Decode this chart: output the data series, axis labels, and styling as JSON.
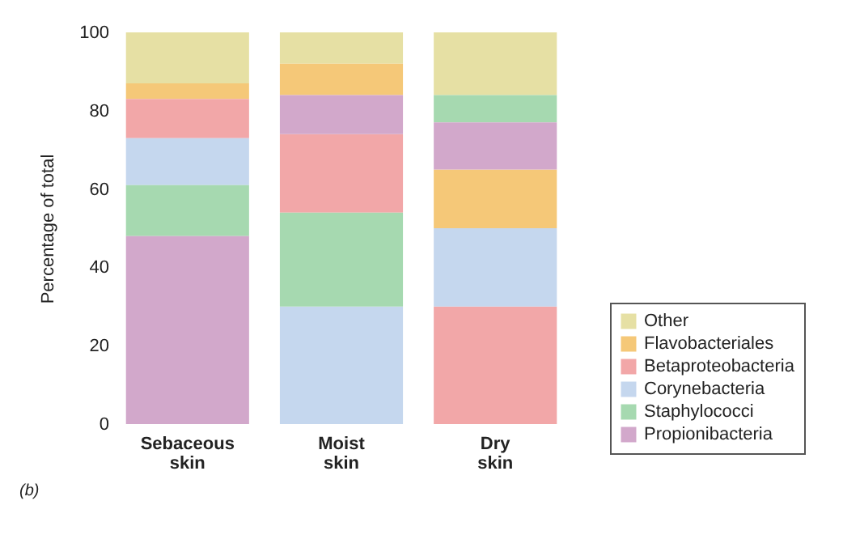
{
  "chart_data": {
    "type": "bar",
    "ylabel": "Percentage of total",
    "categories": [
      "Sebaceous skin",
      "Moist skin",
      "Dry skin"
    ],
    "series": [
      {
        "name": "Other",
        "color": "#e6e0a4",
        "values": [
          13,
          8,
          16
        ],
        "base": [
          87,
          92,
          84
        ]
      },
      {
        "name": "Flavobacteriales",
        "color": "#f5c878",
        "values": [
          4,
          8,
          15
        ],
        "base": [
          83,
          84,
          50
        ]
      },
      {
        "name": "Betaproteobacteria",
        "color": "#f2a7a8",
        "values": [
          10,
          20,
          30
        ],
        "base": [
          73,
          54,
          0
        ]
      },
      {
        "name": "Corynebacteria",
        "color": "#c5d7ee",
        "values": [
          12,
          30,
          20
        ],
        "base": [
          61,
          0,
          30
        ]
      },
      {
        "name": "Staphylococci",
        "color": "#a6d9b0",
        "values": [
          13,
          24,
          7
        ],
        "base": [
          48,
          30,
          77
        ]
      },
      {
        "name": "Propionibacteria",
        "color": "#d2a8cb",
        "values": [
          48,
          10,
          12
        ],
        "base": [
          0,
          74,
          65
        ]
      }
    ],
    "ylim": [
      0,
      100
    ],
    "yticks": [
      0,
      20,
      40,
      60,
      80,
      100
    ],
    "legend": "bottom right",
    "annotations": [
      "(b)"
    ]
  }
}
